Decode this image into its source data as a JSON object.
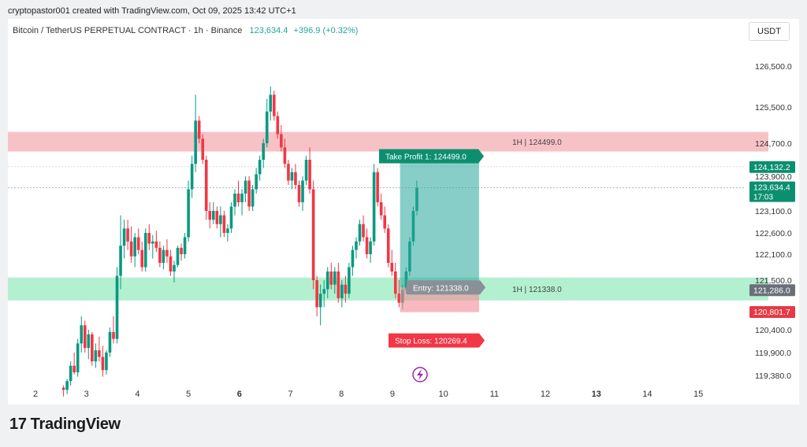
{
  "header": {
    "credit": "cryptopastor001 created with TradingView.com, Oct 09, 2025 13:42 UTC+1",
    "symbol": "Bitcoin / TetherUS PERPETUAL CONTRACT · 1h · Binance",
    "last_price": "123,634.4",
    "change": "+396.9 (+0.32%)",
    "currency": "USDT"
  },
  "brand": {
    "logo": "17",
    "name": "TradingView"
  },
  "chart_data": {
    "type": "candlestick",
    "timeframe": "1h",
    "x_ticks": [
      "2",
      "3",
      "4",
      "5",
      "6",
      "7",
      "8",
      "9",
      "10",
      "11",
      "12",
      "13",
      "14",
      "15"
    ],
    "x_ticks_bold": [
      "6",
      "13"
    ],
    "y_ticks": [
      {
        "v": 126500,
        "label": "126,500.0"
      },
      {
        "v": 125500,
        "label": "125,500.0"
      },
      {
        "v": 124700,
        "label": "124,700.0"
      },
      {
        "v": 123900,
        "label": "123,900.0"
      },
      {
        "v": 123100,
        "label": "123,100.0"
      },
      {
        "v": 122600,
        "label": "122,600.0"
      },
      {
        "v": 122100,
        "label": "122,100.0"
      },
      {
        "v": 121500,
        "label": "121,500.0"
      },
      {
        "v": 120400,
        "label": "120,400.0"
      },
      {
        "v": 119900,
        "label": "119,900.0"
      },
      {
        "v": 119380,
        "label": "119,380.0"
      }
    ],
    "price_badges": [
      {
        "v": 124132.2,
        "label": "124,132.2",
        "color": "#0b8f6f"
      },
      {
        "v": 123634.4,
        "label": "123,634.4",
        "sub": "17:03",
        "color": "#0b8f6f"
      },
      {
        "v": 121286.0,
        "label": "121,286.0",
        "color": "#6b6f78"
      },
      {
        "v": 120801.7,
        "label": "120,801.7",
        "color": "#e53a45"
      }
    ],
    "zones": [
      {
        "from": 124499,
        "to": 124950,
        "color": "#f7c2c6",
        "label": "1H | 124499.0"
      },
      {
        "from": 121050,
        "to": 121560,
        "color": "#b3f0cf",
        "label": "1H | 121338.0"
      }
    ],
    "position": {
      "start_day": 9.15,
      "end_day": 10.7,
      "entry": 121338.0,
      "take_profit": 124499.0,
      "stop_loss": 120269.4,
      "tp_label": "Take Profit 1: 124499.0",
      "entry_label": "Entry: 121338.0",
      "sl_label": "Stop Loss: 120269.4"
    },
    "series": [
      [
        2.55,
        119100,
        119150,
        118900,
        119050
      ],
      [
        2.62,
        119050,
        119300,
        118950,
        119250
      ],
      [
        2.69,
        119250,
        119700,
        119150,
        119600
      ],
      [
        2.76,
        119600,
        119900,
        119400,
        119450
      ],
      [
        2.83,
        119450,
        120200,
        119350,
        120100
      ],
      [
        2.9,
        120100,
        120700,
        119900,
        120500
      ],
      [
        2.97,
        120500,
        120600,
        119900,
        120000
      ],
      [
        3.04,
        120000,
        120400,
        119750,
        120300
      ],
      [
        3.11,
        120300,
        120350,
        119600,
        119700
      ],
      [
        3.18,
        119700,
        120100,
        119550,
        119950
      ],
      [
        3.25,
        119950,
        120250,
        119700,
        119800
      ],
      [
        3.32,
        119800,
        120050,
        119350,
        119500
      ],
      [
        3.39,
        119500,
        119950,
        119400,
        119900
      ],
      [
        3.46,
        119900,
        120450,
        119800,
        120350
      ],
      [
        3.53,
        120350,
        120700,
        120100,
        120200
      ],
      [
        3.6,
        120200,
        121800,
        120100,
        121600
      ],
      [
        3.67,
        121600,
        123000,
        121300,
        122300
      ],
      [
        3.74,
        122300,
        122900,
        122000,
        122700
      ],
      [
        3.81,
        122700,
        122900,
        122200,
        122400
      ],
      [
        3.88,
        122400,
        122750,
        121900,
        122050
      ],
      [
        3.95,
        122050,
        122600,
        121800,
        122500
      ],
      [
        4.02,
        122500,
        122700,
        122100,
        122200
      ],
      [
        4.09,
        122200,
        122400,
        121700,
        121800
      ],
      [
        4.16,
        121800,
        122700,
        121700,
        122600
      ],
      [
        4.23,
        122600,
        122800,
        122200,
        122350
      ],
      [
        4.3,
        122350,
        122550,
        122000,
        122400
      ],
      [
        4.37,
        122400,
        122650,
        122150,
        122250
      ],
      [
        4.44,
        122250,
        122400,
        121800,
        121900
      ],
      [
        4.51,
        121900,
        122300,
        121750,
        122200
      ],
      [
        4.58,
        122200,
        122450,
        121900,
        122050
      ],
      [
        4.65,
        122050,
        122200,
        121600,
        121700
      ],
      [
        4.72,
        121700,
        121950,
        121450,
        121850
      ],
      [
        4.79,
        121850,
        122300,
        121800,
        122250
      ],
      [
        4.86,
        122250,
        122350,
        121950,
        122100
      ],
      [
        4.93,
        122100,
        122600,
        122000,
        122500
      ],
      [
        5.0,
        122500,
        123800,
        122400,
        123600
      ],
      [
        5.07,
        123600,
        124400,
        123400,
        124200
      ],
      [
        5.14,
        124200,
        125800,
        124000,
        125200
      ],
      [
        5.21,
        125200,
        125300,
        124700,
        124800
      ],
      [
        5.28,
        124800,
        124900,
        124200,
        124300
      ],
      [
        5.35,
        124300,
        124400,
        122900,
        123100
      ],
      [
        5.42,
        123100,
        123300,
        122700,
        122900
      ],
      [
        5.49,
        122900,
        123300,
        122800,
        123100
      ],
      [
        5.56,
        123100,
        123200,
        122700,
        122800
      ],
      [
        5.63,
        122800,
        123200,
        122500,
        123000
      ],
      [
        5.7,
        123000,
        123100,
        122500,
        122600
      ],
      [
        5.77,
        122600,
        122800,
        122400,
        122700
      ],
      [
        5.84,
        122700,
        123300,
        122600,
        123200
      ],
      [
        5.91,
        123200,
        123600,
        123000,
        123500
      ],
      [
        5.98,
        123500,
        123800,
        123200,
        123300
      ],
      [
        6.05,
        123300,
        123600,
        123000,
        123500
      ],
      [
        6.12,
        123500,
        123900,
        123300,
        123800
      ],
      [
        6.19,
        123800,
        123900,
        123100,
        123200
      ],
      [
        6.26,
        123200,
        123700,
        123100,
        123600
      ],
      [
        6.33,
        123600,
        124100,
        123500,
        123950
      ],
      [
        6.4,
        123950,
        124400,
        123800,
        124300
      ],
      [
        6.47,
        124300,
        124800,
        124100,
        124700
      ],
      [
        6.54,
        124700,
        125700,
        124600,
        125400
      ],
      [
        6.61,
        125400,
        126000,
        125200,
        125800
      ],
      [
        6.68,
        125800,
        125900,
        125200,
        125300
      ],
      [
        6.75,
        125300,
        125400,
        124800,
        124900
      ],
      [
        6.82,
        124900,
        125100,
        124500,
        124600
      ],
      [
        6.89,
        124600,
        124800,
        124100,
        124200
      ],
      [
        6.96,
        124200,
        124300,
        123700,
        123800
      ],
      [
        7.03,
        123800,
        124100,
        123600,
        124000
      ],
      [
        7.1,
        124000,
        124200,
        123600,
        123700
      ],
      [
        7.17,
        123700,
        123800,
        123200,
        123300
      ],
      [
        7.24,
        123300,
        123900,
        123100,
        123800
      ],
      [
        7.31,
        123800,
        124400,
        123700,
        124300
      ],
      [
        7.38,
        124300,
        124600,
        123500,
        123600
      ],
      [
        7.45,
        123600,
        123800,
        121300,
        121500
      ],
      [
        7.52,
        121500,
        121600,
        120700,
        120900
      ],
      [
        7.59,
        120900,
        121400,
        120500,
        121200
      ],
      [
        7.66,
        121200,
        121500,
        120900,
        121300
      ],
      [
        7.73,
        121300,
        121800,
        121100,
        121700
      ],
      [
        7.8,
        121700,
        121900,
        121300,
        121400
      ],
      [
        7.87,
        121400,
        121800,
        121200,
        121700
      ],
      [
        7.94,
        121700,
        121900,
        121000,
        121100
      ],
      [
        8.01,
        121100,
        121500,
        120900,
        121400
      ],
      [
        8.08,
        121400,
        121600,
        121000,
        121200
      ],
      [
        8.15,
        121200,
        121900,
        121100,
        121800
      ],
      [
        8.22,
        121800,
        122300,
        121600,
        122200
      ],
      [
        8.29,
        122200,
        122500,
        122000,
        122400
      ],
      [
        8.36,
        122400,
        122900,
        122300,
        122800
      ],
      [
        8.43,
        122800,
        123000,
        122400,
        122500
      ],
      [
        8.5,
        122500,
        122700,
        122000,
        122100
      ],
      [
        8.57,
        122100,
        122500,
        121900,
        122400
      ],
      [
        8.64,
        122400,
        124200,
        122300,
        124000
      ],
      [
        8.71,
        124000,
        124100,
        123200,
        123300
      ],
      [
        8.78,
        123300,
        123500,
        122900,
        123000
      ],
      [
        8.85,
        123000,
        123200,
        122600,
        122700
      ],
      [
        8.92,
        122700,
        122800,
        121800,
        121900
      ],
      [
        8.99,
        121900,
        122200,
        121600,
        121700
      ],
      [
        9.06,
        121700,
        121900,
        121100,
        121200
      ],
      [
        9.13,
        121200,
        121500,
        120900,
        121000
      ],
      [
        9.2,
        121000,
        121400,
        120850,
        121286
      ],
      [
        9.27,
        121286,
        121800,
        121200,
        121700
      ],
      [
        9.34,
        121700,
        122500,
        121600,
        122400
      ],
      [
        9.41,
        122400,
        123200,
        122300,
        123100
      ],
      [
        9.48,
        123100,
        123800,
        123000,
        123634.4
      ]
    ]
  }
}
